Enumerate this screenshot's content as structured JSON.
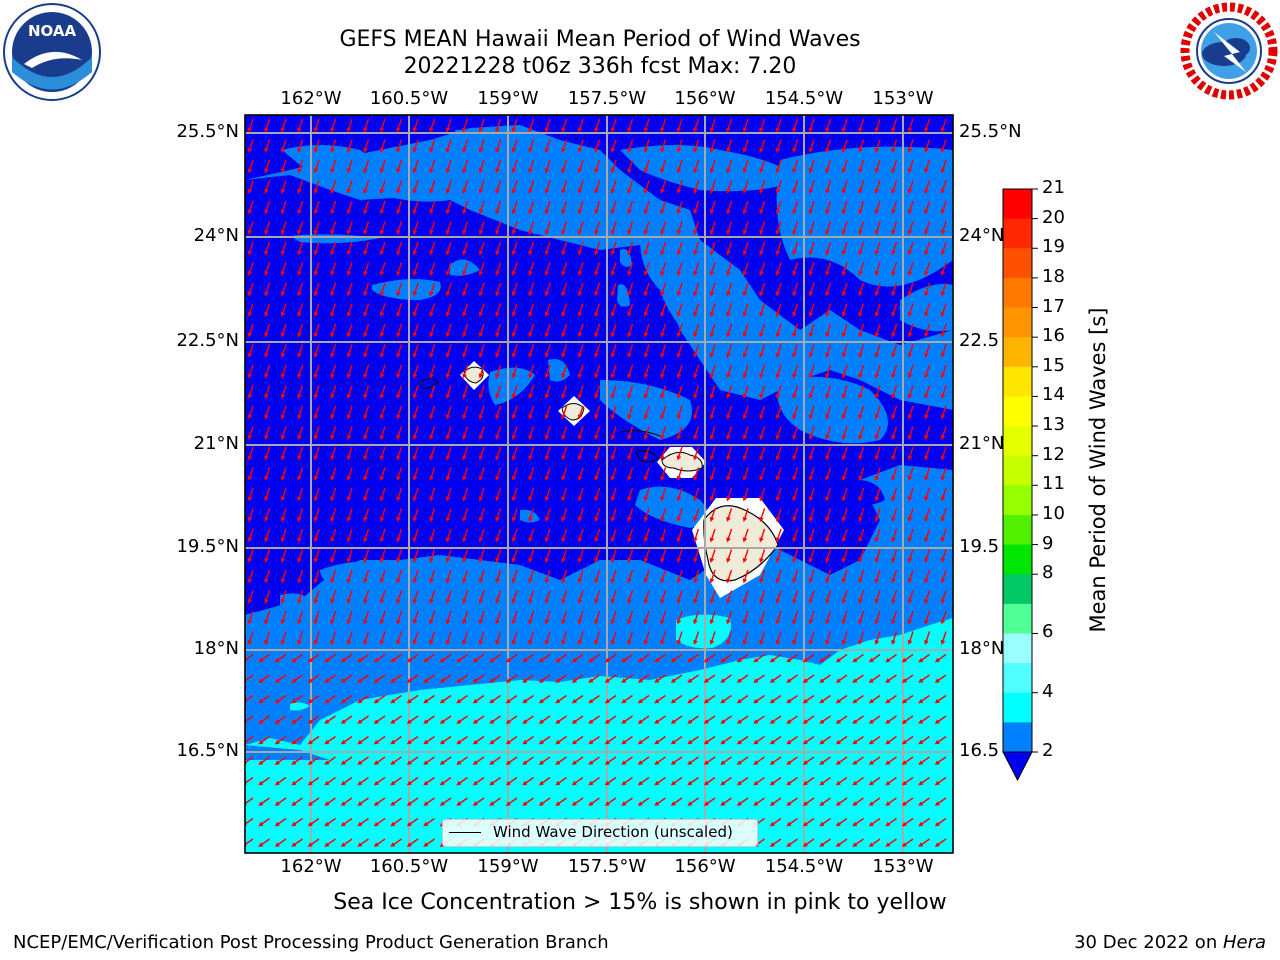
{
  "title": {
    "line1": "GEFS MEAN Hawaii Mean Period of Wind Waves",
    "line2": "20221228 t06z 336h fcst   Max: 7.20"
  },
  "map": {
    "lon_labels": [
      "162°W",
      "160.5°W",
      "159°W",
      "157.5°W",
      "156°W",
      "154.5°W",
      "153°W"
    ],
    "lat_labels": [
      "25.5°N",
      "24°N",
      "22.5°N",
      "21°N",
      "19.5°N",
      "18°N",
      "16.5°N"
    ],
    "lat_labels_right": [
      "25.5°N",
      "24°N",
      "22.5",
      "21°N",
      "19.5",
      "18°N",
      "16.5"
    ],
    "region": "Hawaii",
    "colors": {
      "below_2": "#0000f0",
      "band_2_4": "#0080ff",
      "band_4_6": "#00ffff",
      "land": "#efebd8",
      "arrow": "#ff0000",
      "grid": "#a9a9a9"
    }
  },
  "legend": {
    "label": "Wind Wave Direction (unscaled)"
  },
  "colorbar": {
    "title": "Mean Period of Wind Waves [s]",
    "ticks": [
      "21",
      "20",
      "19",
      "18",
      "17",
      "16",
      "15",
      "14",
      "13",
      "12",
      "11",
      "10",
      "9",
      "8",
      "6",
      "4",
      "2"
    ],
    "colors": [
      "#ff0000",
      "#ff2800",
      "#ff5000",
      "#ff7800",
      "#ff9600",
      "#ffb400",
      "#ffe600",
      "#ffff00",
      "#e6ff00",
      "#c8ff00",
      "#96ff00",
      "#50f000",
      "#00e600",
      "#00c864",
      "#50ff96",
      "#9bffff",
      "#50ffff",
      "#00ffff",
      "#0080ff"
    ],
    "under_color": "#0000f0"
  },
  "notes": {
    "sea_ice": "Sea Ice Concentration > 15% is shown in pink to yellow",
    "producer": "NCEP/EMC/Verification Post Processing Product Generation Branch",
    "date": "30 Dec 2022 on ",
    "machine": "Hera"
  },
  "logos": {
    "noaa": "NOAA",
    "nws": "NATIONAL WEATHER SERVICE"
  }
}
